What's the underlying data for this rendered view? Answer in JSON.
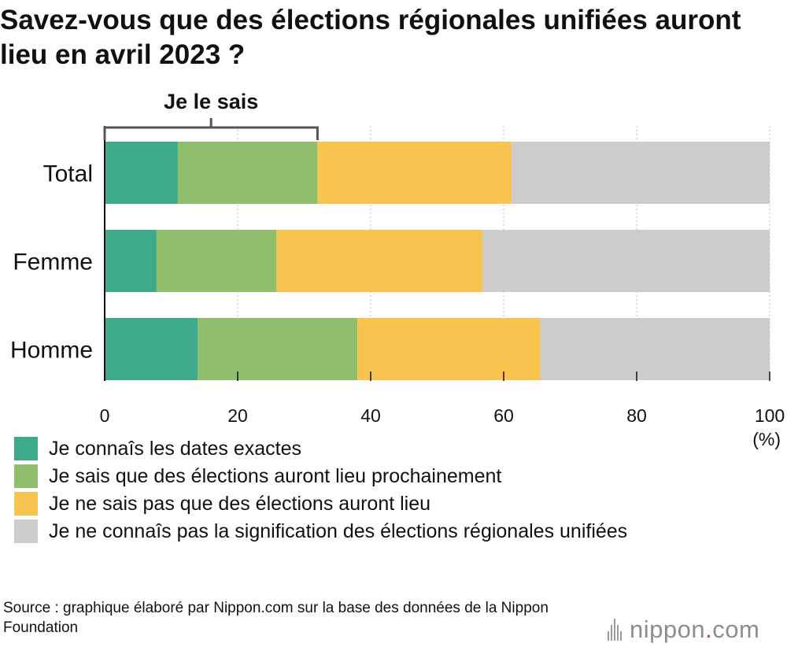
{
  "title": "Savez-vous que des élections régionales unifiées auront lieu en avril 2023 ?",
  "chart_data": {
    "type": "bar",
    "orientation": "horizontal",
    "stacked": true,
    "categories": [
      "Total",
      "Femme",
      "Homme"
    ],
    "series": [
      {
        "name": "Je connaîs les dates exactes",
        "color": "#3faa8a",
        "values": [
          11.0,
          7.8,
          14.0
        ]
      },
      {
        "name": "Je sais que des élections auront lieu prochainement",
        "color": "#8fbf6c",
        "values": [
          21.0,
          18.0,
          24.0
        ]
      },
      {
        "name": "Je ne sais pas que des élections auront lieu",
        "color": "#f8c44f",
        "values": [
          29.2,
          31.0,
          27.5
        ]
      },
      {
        "name": "Je ne connaîs pas la signification des élections régionales unifiées",
        "color": "#cccccc",
        "values": [
          38.8,
          43.2,
          34.5
        ]
      }
    ],
    "xlim": [
      0,
      100
    ],
    "xticks": [
      "0",
      "20",
      "40",
      "60",
      "80",
      "100"
    ],
    "xunit": "(%)",
    "bracket": {
      "label": "Je le sais",
      "from": 0,
      "to": 32,
      "category": "Total"
    }
  },
  "source": "Source : graphique élaboré par Nippon.com sur la base des données de la Nippon Foundation",
  "logo": {
    "name": "nippon",
    "dot": ".",
    "tld": "com"
  }
}
